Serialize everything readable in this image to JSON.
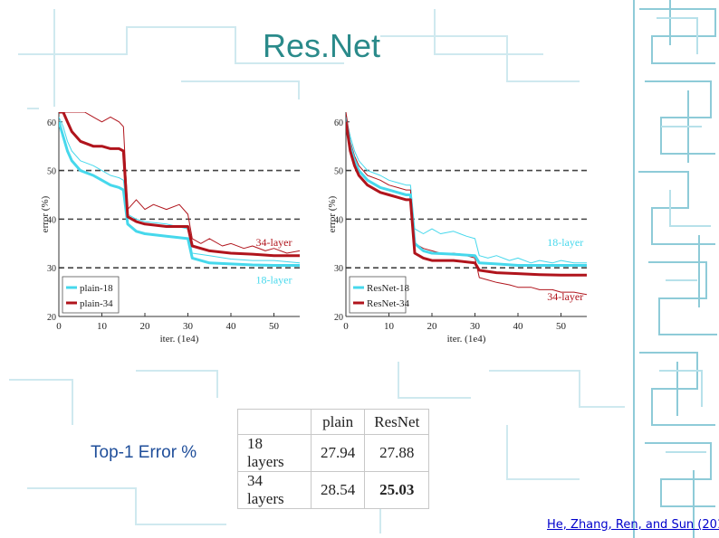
{
  "slide": {
    "title": "Res.Net",
    "table_label": "Top-1 Error %",
    "citation": "He, Zhang, Ren, and Sun (201"
  },
  "colors": {
    "title": "#2a8a8a",
    "cyan": "#46d8ec",
    "red": "#b0141c",
    "link": "#0000cc",
    "pattern": "#8ecbd8"
  },
  "chart_data": [
    {
      "type": "line",
      "title": "",
      "xlabel": "iter. (1e4)",
      "ylabel": "error (%)",
      "xlim": [
        0,
        56
      ],
      "ylim": [
        20,
        62
      ],
      "x_ticks": [
        0,
        10,
        20,
        30,
        40,
        50
      ],
      "y_ticks": [
        20,
        30,
        40,
        50,
        60
      ],
      "dashed_y": [
        30,
        40,
        50
      ],
      "legend": {
        "position": "bottom-left",
        "entries": [
          "plain-18",
          "plain-34"
        ]
      },
      "annotations": [
        {
          "text": "34-layer",
          "x": 50,
          "y": 34.5,
          "color": "red"
        },
        {
          "text": "18-layer",
          "x": 50,
          "y": 26.8,
          "color": "cyan"
        }
      ],
      "series": [
        {
          "name": "plain-18",
          "color": "cyan",
          "kind": "thick",
          "x": [
            0,
            1,
            2,
            3,
            5,
            8,
            10,
            12,
            14,
            15,
            16,
            18,
            20,
            25,
            30,
            31,
            35,
            40,
            45,
            50,
            56
          ],
          "y": [
            60,
            57,
            54,
            52,
            50,
            49,
            48,
            47,
            46.5,
            46,
            39,
            37.5,
            37,
            36.5,
            36,
            32,
            31,
            30.8,
            30.6,
            30.5,
            30.5
          ]
        },
        {
          "name": "plain-34",
          "color": "red",
          "kind": "thick",
          "x": [
            0,
            1,
            2,
            3,
            5,
            8,
            10,
            12,
            14,
            15,
            16,
            18,
            20,
            25,
            30,
            31,
            35,
            40,
            45,
            50,
            56
          ],
          "y": [
            62,
            62,
            60,
            58,
            56,
            55,
            55,
            54.5,
            54.5,
            54,
            40.5,
            39.5,
            39,
            38.5,
            38.5,
            34.5,
            33.5,
            33,
            32.8,
            32.5,
            32.5
          ]
        },
        {
          "name": "plain-18 train",
          "color": "cyan",
          "kind": "thin",
          "x": [
            0,
            1,
            2,
            3,
            5,
            8,
            10,
            12,
            14,
            15,
            16,
            18,
            20,
            25,
            30,
            31,
            35,
            40,
            45,
            50,
            56
          ],
          "y": [
            61,
            59,
            56,
            54,
            52,
            51,
            50,
            49,
            48.5,
            48,
            41,
            40,
            39.5,
            39,
            38,
            33,
            32.5,
            31.8,
            31.5,
            31.5,
            31
          ]
        },
        {
          "name": "plain-34 train",
          "color": "red",
          "kind": "thin",
          "x": [
            0,
            2,
            4,
            6,
            8,
            10,
            12,
            14,
            15,
            16,
            18,
            20,
            22,
            25,
            28,
            30,
            31,
            33,
            35,
            38,
            40,
            43,
            45,
            48,
            50,
            53,
            56
          ],
          "y": [
            62,
            62,
            62,
            62,
            61,
            60,
            61,
            60,
            59,
            42,
            44,
            42,
            43,
            42,
            43,
            41,
            36,
            35,
            36,
            34.5,
            35,
            34,
            34.5,
            33.5,
            34,
            33,
            33.5
          ]
        }
      ]
    },
    {
      "type": "line",
      "title": "",
      "xlabel": "iter. (1e4)",
      "ylabel": "error (%)",
      "xlim": [
        0,
        56
      ],
      "ylim": [
        20,
        62
      ],
      "x_ticks": [
        0,
        10,
        20,
        30,
        40,
        50
      ],
      "y_ticks": [
        20,
        30,
        40,
        50,
        60
      ],
      "dashed_y": [
        30,
        40,
        50
      ],
      "legend": {
        "position": "bottom-left",
        "entries": [
          "ResNet-18",
          "ResNet-34"
        ]
      },
      "annotations": [
        {
          "text": "18-layer",
          "x": 51,
          "y": 34.5,
          "color": "cyan"
        },
        {
          "text": "34-layer",
          "x": 51,
          "y": 23.3,
          "color": "red"
        }
      ],
      "series": [
        {
          "name": "ResNet-18",
          "color": "cyan",
          "kind": "thick",
          "x": [
            0,
            1,
            2,
            3,
            5,
            8,
            10,
            12,
            14,
            15,
            16,
            18,
            20,
            25,
            30,
            31,
            35,
            40,
            45,
            50,
            56
          ],
          "y": [
            60,
            55,
            52,
            50,
            48,
            46.5,
            46,
            45.5,
            45,
            45,
            35,
            33.5,
            33,
            32.8,
            32.5,
            31,
            30.8,
            30.5,
            30.5,
            30.5,
            30.5
          ]
        },
        {
          "name": "ResNet-34",
          "color": "red",
          "kind": "thick",
          "x": [
            0,
            1,
            2,
            3,
            5,
            8,
            10,
            12,
            14,
            15,
            16,
            18,
            20,
            25,
            30,
            31,
            35,
            40,
            45,
            50,
            56
          ],
          "y": [
            60,
            54,
            51,
            49,
            47,
            45.5,
            45,
            44.5,
            44,
            44,
            33,
            32,
            31.5,
            31.5,
            31,
            29.5,
            29,
            28.8,
            28.6,
            28.5,
            28.5
          ]
        },
        {
          "name": "ResNet-18 train",
          "color": "cyan",
          "kind": "thin",
          "x": [
            0,
            1,
            2,
            3,
            5,
            8,
            10,
            12,
            14,
            15,
            16,
            18,
            20,
            22,
            25,
            28,
            30,
            31,
            33,
            35,
            38,
            40,
            43,
            45,
            48,
            50,
            53,
            56
          ],
          "y": [
            61,
            57,
            54,
            52,
            50,
            49,
            48,
            47.5,
            47,
            47,
            38,
            37,
            38,
            37,
            37.5,
            36.5,
            36,
            32.5,
            32,
            32.5,
            31.5,
            32,
            31,
            31.5,
            31,
            31.5,
            31,
            31
          ]
        },
        {
          "name": "ResNet-34 train",
          "color": "red",
          "kind": "thin",
          "x": [
            0,
            1,
            2,
            3,
            5,
            8,
            10,
            12,
            14,
            15,
            16,
            18,
            20,
            22,
            25,
            28,
            30,
            31,
            33,
            35,
            38,
            40,
            43,
            45,
            48,
            50,
            53,
            56
          ],
          "y": [
            62,
            56,
            53,
            51,
            49,
            48,
            47,
            46.5,
            46,
            46,
            35,
            34,
            33.5,
            33,
            33,
            32.5,
            32,
            28,
            27.5,
            27,
            26.5,
            26,
            26,
            25.5,
            25.5,
            25,
            25,
            24.5
          ]
        }
      ]
    },
    {
      "type": "table",
      "columns": [
        "",
        "plain",
        "ResNet"
      ],
      "rows": [
        [
          "18 layers",
          "27.94",
          "27.88"
        ],
        [
          "34 layers",
          "28.54",
          "25.03"
        ]
      ],
      "bold_cells": [
        [
          1,
          2
        ]
      ]
    }
  ]
}
